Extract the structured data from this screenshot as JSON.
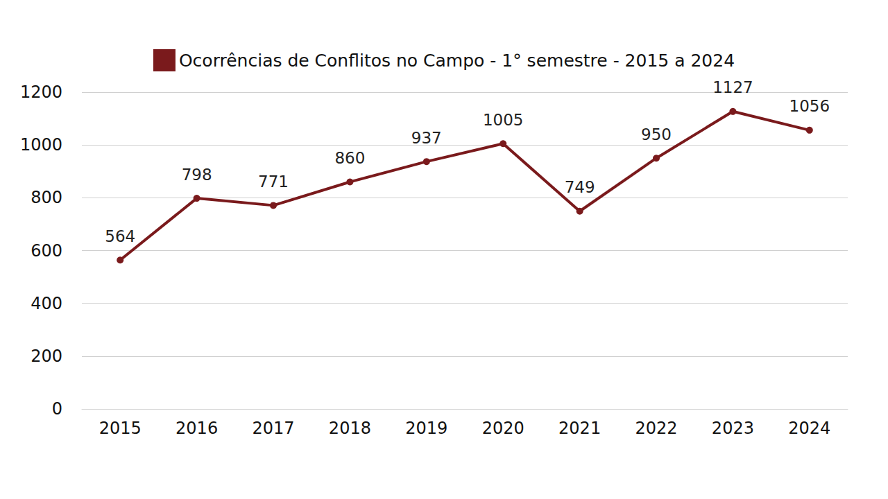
{
  "chart_data": {
    "type": "line",
    "categories": [
      "2015",
      "2016",
      "2017",
      "2018",
      "2019",
      "2020",
      "2021",
      "2022",
      "2023",
      "2024"
    ],
    "series": [
      {
        "name": "Ocorrências de Conflitos no Campo - 1° semestre - 2015 a 2024",
        "color": "#7a1a1c",
        "values": [
          564,
          798,
          771,
          860,
          937,
          1005,
          749,
          950,
          1127,
          1056
        ],
        "marker": "circle",
        "line_style": "solid"
      }
    ],
    "ylim": [
      0,
      1200
    ],
    "yticks": [
      0,
      200,
      400,
      600,
      800,
      1000,
      1200
    ],
    "grid": true,
    "data_labels": true,
    "legend": "top"
  }
}
